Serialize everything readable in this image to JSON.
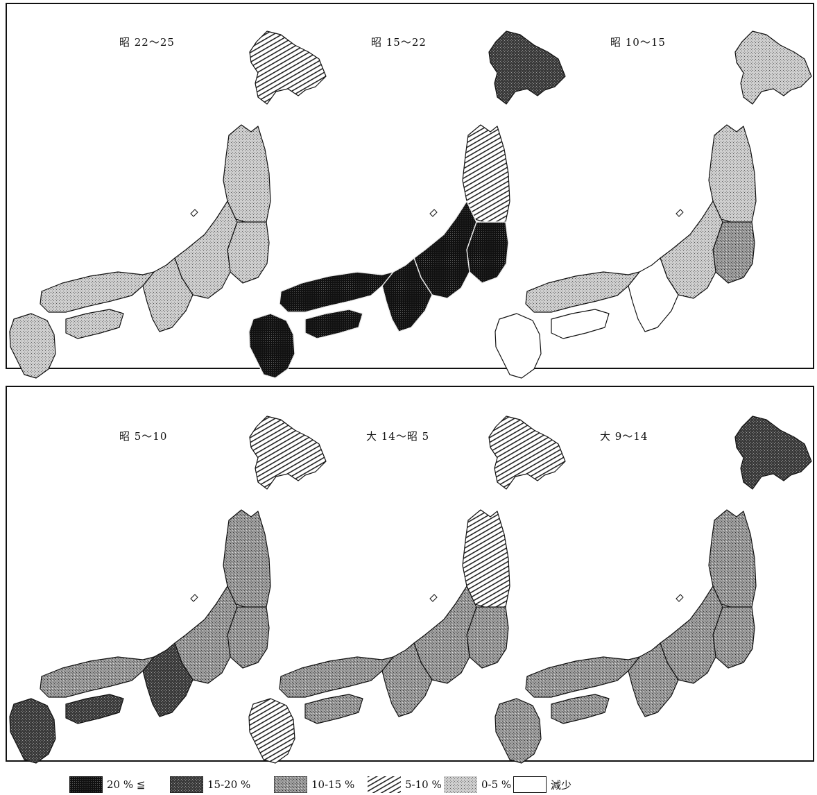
{
  "figure": {
    "maps": [
      {
        "id": "m1",
        "label": "昭 22〜25",
        "fills": {
          "hokkaido": "p5-10",
          "tohoku": "p0-5",
          "kanto": "p0-5",
          "chubu": "p0-5",
          "kinki": "p0-5",
          "chugoku": "p0-5",
          "shikoku": "p0-5",
          "kyushu": "p0-5"
        }
      },
      {
        "id": "m2",
        "label": "昭 15〜22",
        "fills": {
          "hokkaido": "p15-20",
          "tohoku": "p5-10",
          "kanto": "p20",
          "chubu": "p20",
          "kinki": "p20",
          "chugoku": "p20",
          "shikoku": "p20",
          "kyushu": "p20"
        }
      },
      {
        "id": "m3",
        "label": "昭 10〜15",
        "fills": {
          "hokkaido": "p0-5",
          "tohoku": "p0-5",
          "kanto": "p10-15",
          "chubu": "p0-5",
          "kinki": "white",
          "chugoku": "p0-5",
          "shikoku": "white",
          "kyushu": "white"
        }
      },
      {
        "id": "m4",
        "label": "昭 5〜10",
        "fills": {
          "hokkaido": "p5-10",
          "tohoku": "p10-15",
          "kanto": "p10-15",
          "chubu": "p10-15",
          "kinki": "p15-20",
          "chugoku": "p10-15",
          "shikoku": "p15-20",
          "kyushu": "p15-20"
        }
      },
      {
        "id": "m5",
        "label": "大 14〜昭 5",
        "fills": {
          "hokkaido": "p5-10",
          "tohoku": "p5-10",
          "kanto": "p10-15",
          "chubu": "p10-15",
          "kinki": "p10-15",
          "chugoku": "p10-15",
          "shikoku": "p10-15",
          "kyushu": "p5-10"
        }
      },
      {
        "id": "m6",
        "label": "大 9〜14",
        "fills": {
          "hokkaido": "p15-20",
          "tohoku": "p10-15",
          "kanto": "p10-15",
          "chubu": "p10-15",
          "kinki": "p10-15",
          "chugoku": "p10-15",
          "shikoku": "p10-15",
          "kyushu": "p10-15"
        }
      }
    ],
    "legend": [
      {
        "key": "p20",
        "label": "20 % ≦"
      },
      {
        "key": "p15-20",
        "label": "15-20 %"
      },
      {
        "key": "p10-15",
        "label": "10-15 %"
      },
      {
        "key": "p5-10",
        "label": "5-10 %"
      },
      {
        "key": "p0-5",
        "label": "0-5 %"
      },
      {
        "key": "white",
        "label": "減少"
      }
    ]
  }
}
